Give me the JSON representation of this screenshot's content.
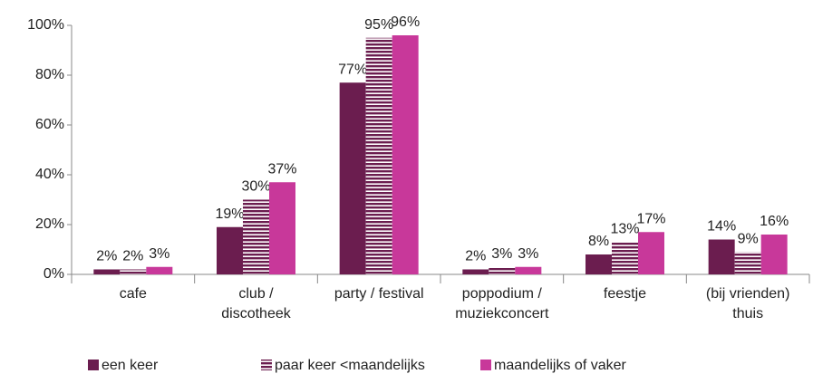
{
  "chart_data": {
    "type": "bar",
    "categories": [
      "cafe",
      "club /\ndiscotheek",
      "party / festival",
      "poppodium /\nmuziekconcert",
      "feestje",
      "(bij vrienden)\nthuis"
    ],
    "series": [
      {
        "name": "een keer",
        "color": "#6b1d4f",
        "values": [
          2,
          19,
          77,
          2,
          8,
          14
        ],
        "value_labels": [
          "2%",
          "19%",
          "77%",
          "2%",
          "8%",
          "14%"
        ]
      },
      {
        "name": "paar keer <maandelijks",
        "color": "#6b1d4f",
        "pattern": "stripes",
        "values": [
          2,
          30,
          95,
          3,
          13,
          9
        ],
        "value_labels": [
          "2%",
          "30%",
          "95%",
          "3%",
          "13%",
          "9%"
        ]
      },
      {
        "name": "maandelijks of vaker",
        "color": "#c8389a",
        "values": [
          3,
          37,
          96,
          3,
          17,
          16
        ],
        "value_labels": [
          "3%",
          "37%",
          "96%",
          "3%",
          "17%",
          "16%"
        ]
      }
    ],
    "ylim": [
      0,
      100
    ],
    "yticks": [
      {
        "value": 0,
        "label": "0%"
      },
      {
        "value": 20,
        "label": "20%"
      },
      {
        "value": 40,
        "label": "40%"
      },
      {
        "value": 60,
        "label": "60%"
      },
      {
        "value": 80,
        "label": "80%"
      },
      {
        "value": 100,
        "label": "100%"
      }
    ],
    "grid": false,
    "legend": "bottom"
  }
}
